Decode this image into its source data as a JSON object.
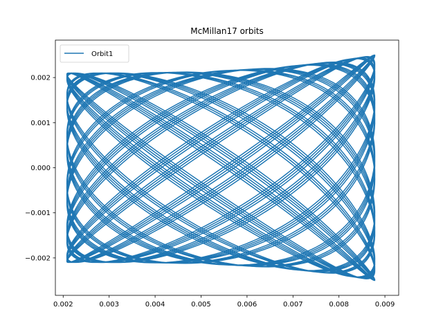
{
  "chart_data": {
    "type": "line",
    "title": "McMillan17 orbits",
    "xlabel": "",
    "ylabel": "",
    "xlim": [
      0.00183,
      0.0093
    ],
    "ylim": [
      -0.00283,
      0.00283
    ],
    "xticks": [
      0.002,
      0.003,
      0.004,
      0.005,
      0.006,
      0.007,
      0.008,
      0.009
    ],
    "xtick_labels": [
      "0.002",
      "0.003",
      "0.004",
      "0.005",
      "0.006",
      "0.007",
      "0.008",
      "0.009"
    ],
    "yticks": [
      -0.002,
      -0.001,
      0.0,
      0.001,
      0.002
    ],
    "ytick_labels": [
      "−0.002",
      "−0.001",
      "0.000",
      "0.001",
      "0.002"
    ],
    "grid": false,
    "legend_position": "top-left",
    "series": [
      {
        "name": "Orbit1",
        "color": "#1f77b4",
        "x_range": [
          0.00208,
          0.00878
        ],
        "y_amplitude_at_x_min": 0.0021,
        "y_amplitude_at_x_max": 0.0025
      }
    ]
  }
}
